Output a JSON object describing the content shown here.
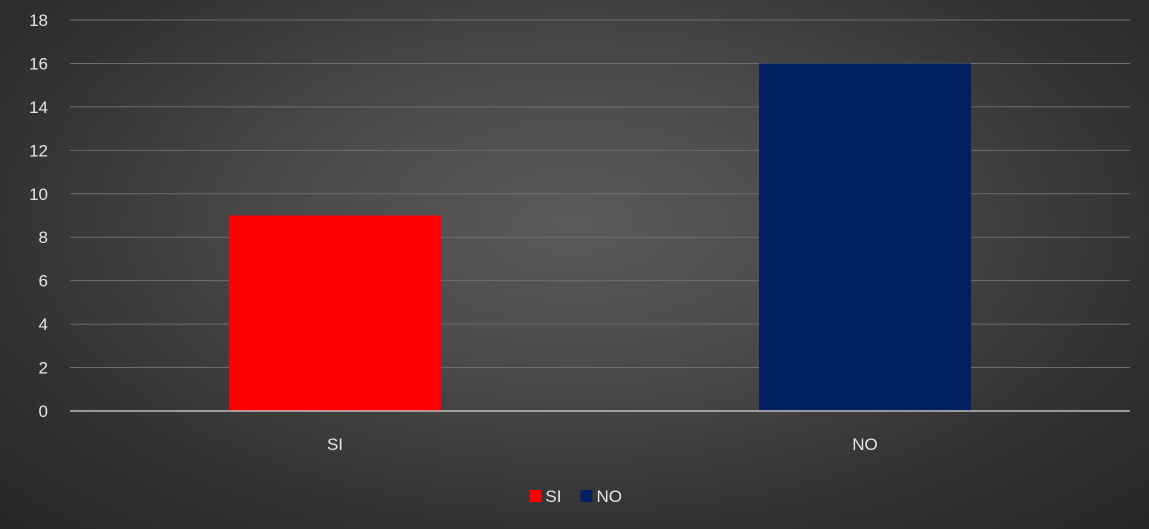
{
  "chart_data": {
    "type": "bar",
    "categories": [
      "SI",
      "NO"
    ],
    "values": [
      9,
      16
    ],
    "bar_colors": [
      "#ff0000",
      "#002060"
    ],
    "ylim": [
      0,
      18
    ],
    "y_ticks": [
      0,
      2,
      4,
      6,
      8,
      10,
      12,
      14,
      16,
      18
    ],
    "y_tick_labels": [
      "0",
      "2",
      "4",
      "6",
      "8",
      "10",
      "12",
      "14",
      "16",
      "18"
    ],
    "grid": true,
    "legend": {
      "position": "bottom",
      "entries": [
        {
          "label": "SI",
          "color": "#ff0000"
        },
        {
          "label": "NO",
          "color": "#002060"
        }
      ]
    }
  }
}
